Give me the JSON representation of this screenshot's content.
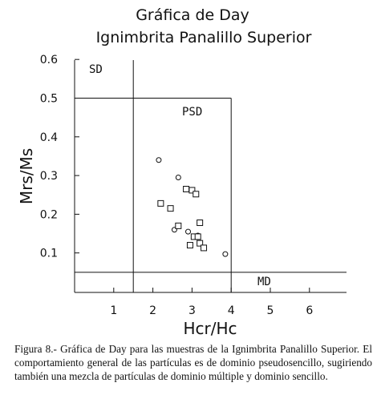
{
  "chart_data": {
    "type": "scatter",
    "title": "Gráfica de Day",
    "subtitle": "Ignimbrita Panalillo Superior",
    "xlabel": "Hcr/Hc",
    "ylabel": "Mrs/Ms",
    "xlim": [
      0,
      7
    ],
    "ylim": [
      0,
      0.6
    ],
    "x_ticks": [
      "1",
      "2",
      "3",
      "4",
      "5",
      "6"
    ],
    "y_ticks": [
      "0.1",
      "0.2",
      "0.3",
      "0.4",
      "0.5",
      "0.6"
    ],
    "grid": false,
    "region_labels": {
      "sd": "SD",
      "psd": "PSD",
      "md": "MD"
    },
    "boundaries": {
      "x_low": 1.5,
      "x_high": 4.0,
      "y_low": 0.05,
      "y_high": 0.5
    },
    "series": [
      {
        "marker": "circle",
        "points": [
          [
            2.15,
            0.34
          ],
          [
            2.65,
            0.295
          ],
          [
            2.55,
            0.16
          ],
          [
            2.9,
            0.155
          ],
          [
            3.15,
            0.145
          ],
          [
            3.85,
            0.097
          ]
        ]
      },
      {
        "marker": "square",
        "points": [
          [
            2.2,
            0.228
          ],
          [
            2.85,
            0.265
          ],
          [
            3.0,
            0.262
          ],
          [
            3.1,
            0.252
          ],
          [
            2.45,
            0.215
          ],
          [
            3.2,
            0.178
          ],
          [
            2.65,
            0.17
          ],
          [
            3.05,
            0.142
          ],
          [
            3.15,
            0.142
          ],
          [
            3.2,
            0.125
          ],
          [
            2.95,
            0.12
          ],
          [
            3.3,
            0.113
          ]
        ]
      }
    ]
  },
  "caption": "Figura 8.- Gráfica de Day para las muestras de la Ignimbrita Panalillo Superior. El comportamiento general de las partículas es de dominio pseudosencillo, sugiriendo también una mezcla de partículas de dominio múltiple y dominio sencillo."
}
